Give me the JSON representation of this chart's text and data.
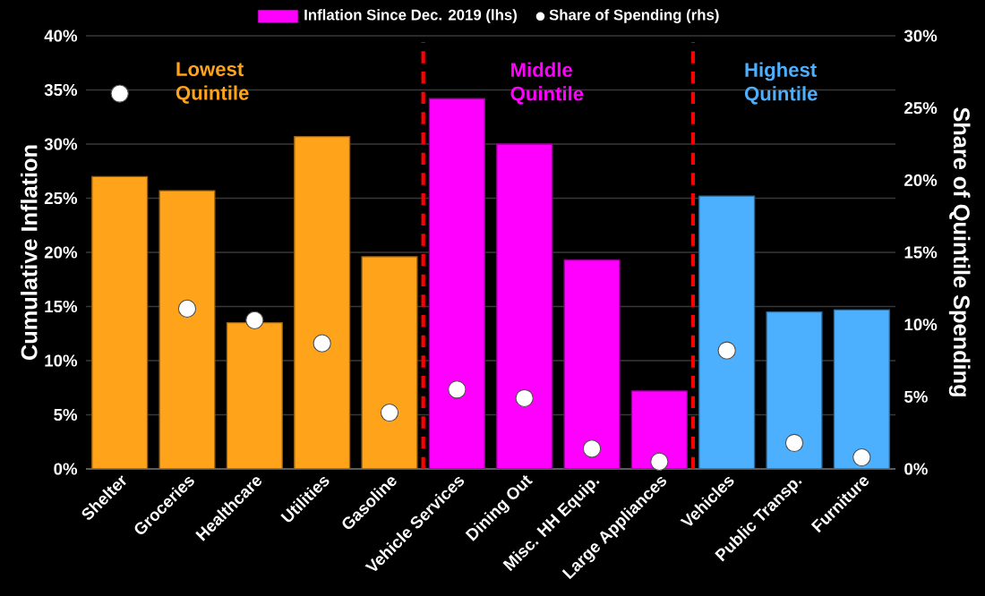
{
  "chart_data": {
    "type": "bar",
    "categories": [
      "Shelter",
      "Groceries",
      "Healthcare",
      "Utilities",
      "Gasoline",
      "Vehicle Services",
      "Dining Out",
      "Misc. HH Equip.",
      "Large Appliances",
      "Vehicles",
      "Public Transp.",
      "Furniture"
    ],
    "series": [
      {
        "name": "Inflation Since Dec. 2019 (lhs)",
        "colors": [
          "#ffa31a",
          "#ffa31a",
          "#ffa31a",
          "#ffa31a",
          "#ffa31a",
          "#ff00ff",
          "#ff00ff",
          "#ff00ff",
          "#ff00ff",
          "#4db0ff",
          "#4db0ff",
          "#4db0ff"
        ],
        "values": [
          27.0,
          25.7,
          13.5,
          30.7,
          19.6,
          34.2,
          30.0,
          19.3,
          7.2,
          25.2,
          14.5,
          14.7
        ]
      },
      {
        "name": "Share of Spending (rhs)",
        "type": "scatter",
        "axis": "y2",
        "color": "#ffffff",
        "values": [
          26.0,
          11.1,
          10.3,
          8.7,
          3.9,
          5.5,
          4.9,
          1.4,
          0.5,
          8.2,
          1.8,
          0.8
        ]
      }
    ],
    "ylabel": "Cumulative Inflation",
    "y2label": "Share of Quintile Spending",
    "ylim": [
      0,
      40
    ],
    "yticks": [
      {
        "value": 0,
        "label": "0%"
      },
      {
        "value": 5,
        "label": "5%"
      },
      {
        "value": 10,
        "label": "10%"
      },
      {
        "value": 15,
        "label": "15%"
      },
      {
        "value": 20,
        "label": "20%"
      },
      {
        "value": 25,
        "label": "25%"
      },
      {
        "value": 30,
        "label": "30%"
      },
      {
        "value": 35,
        "label": "35%"
      },
      {
        "value": 40,
        "label": "40%"
      }
    ],
    "y2lim": [
      0,
      30
    ],
    "y2ticks": [
      {
        "value": 0,
        "label": "0%"
      },
      {
        "value": 5,
        "label": "5%"
      },
      {
        "value": 10,
        "label": "10%"
      },
      {
        "value": 15,
        "label": "15%"
      },
      {
        "value": 20,
        "label": "20%"
      },
      {
        "value": 25,
        "label": "25%"
      },
      {
        "value": 30,
        "label": "30%"
      }
    ],
    "annotations": [
      "Lowest Quintile",
      "Middle Quintile",
      "Highest Quintile"
    ],
    "grid": "y",
    "legend": "top",
    "marker": "circle"
  }
}
